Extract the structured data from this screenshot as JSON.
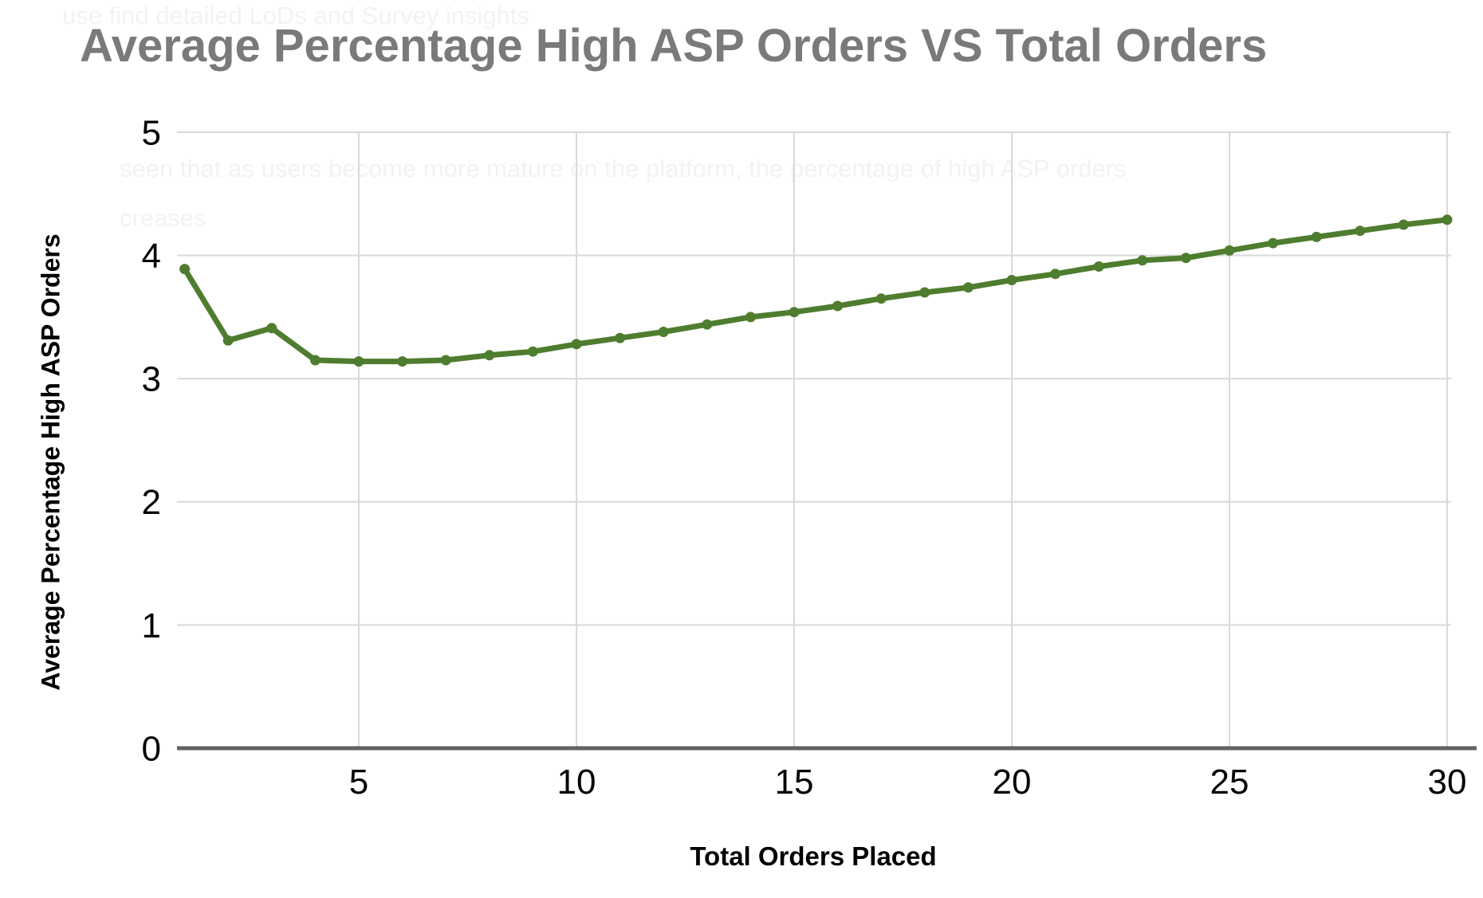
{
  "page": {
    "background": "#ffffff"
  },
  "chart_data": {
    "type": "line",
    "title": "Average Percentage High ASP Orders VS Total Orders",
    "xlabel": "Total Orders Placed",
    "ylabel": "Average Percentage High ASP Orders",
    "x": [
      1,
      2,
      3,
      4,
      5,
      6,
      7,
      8,
      9,
      10,
      11,
      12,
      13,
      14,
      15,
      16,
      17,
      18,
      19,
      20,
      21,
      22,
      23,
      24,
      25,
      26,
      27,
      28,
      29,
      30
    ],
    "values": [
      3.89,
      3.31,
      3.41,
      3.15,
      3.14,
      3.14,
      3.15,
      3.19,
      3.22,
      3.28,
      3.33,
      3.38,
      3.44,
      3.5,
      3.54,
      3.59,
      3.65,
      3.7,
      3.74,
      3.8,
      3.85,
      3.91,
      3.96,
      3.98,
      4.04,
      4.1,
      4.15,
      4.2,
      4.25,
      4.29
    ],
    "x_ticks": [
      5,
      10,
      15,
      20,
      25,
      30
    ],
    "y_ticks": [
      0,
      1,
      2,
      3,
      4,
      5
    ],
    "xlim": [
      0.83,
      30.6
    ],
    "ylim": [
      0,
      5
    ],
    "grid": true,
    "legend": false,
    "marker": "circle",
    "colors": {
      "line": "#4f7d2f",
      "marker": "#4f7d2f",
      "grid": "#d9d9d9",
      "axis": "#636363",
      "tick_labels": "#000000",
      "title": "#7a7a7a"
    }
  },
  "ghost_text": {
    "top_line": "use find detailed LoDs and Survey insights",
    "middle_line": "seen that as users become more mature on the platform, the percentage of high ASP orders",
    "middle_line_wrap": "creases"
  }
}
